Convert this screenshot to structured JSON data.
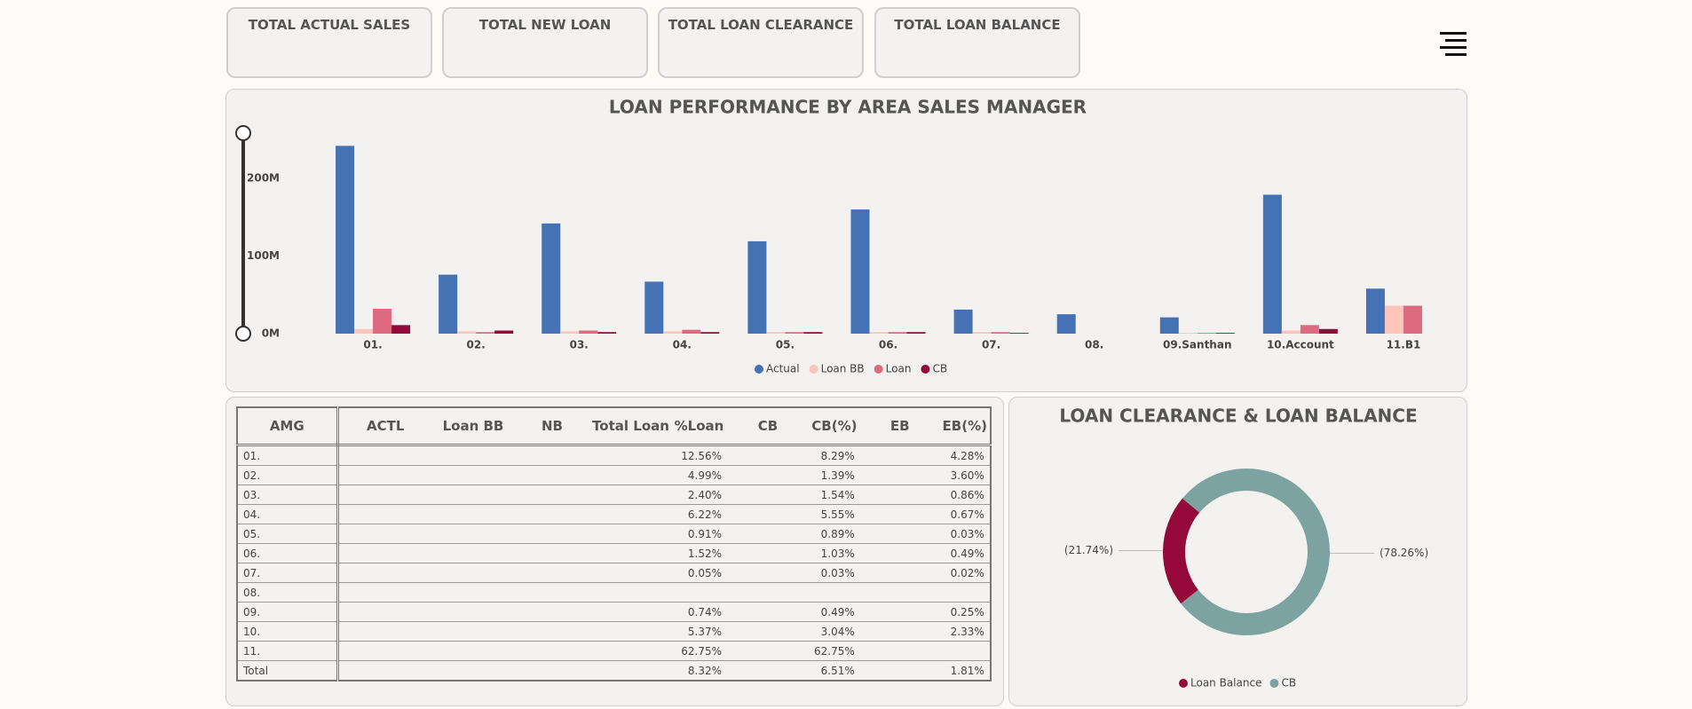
{
  "cards": [
    {
      "title": "TOTAL ACTUAL SALES"
    },
    {
      "title": "TOTAL NEW LOAN"
    },
    {
      "title": "TOTAL LOAN CLEARANCE"
    },
    {
      "title": "TOTAL LOAN BALANCE"
    }
  ],
  "chart_data": [
    {
      "type": "bar",
      "title": "LOAN PERFORMANCE BY AREA SALES MANAGER",
      "categories": [
        "01.",
        "02.",
        "03.",
        "04.",
        "05.",
        "06.",
        "07.",
        "08.",
        "09.Santhan",
        "10.Account",
        "11.B1"
      ],
      "series": [
        {
          "name": "Actual",
          "color": "#4472b4",
          "values": [
            242,
            76,
            142,
            67,
            119,
            160,
            31,
            25,
            21,
            179,
            58
          ]
        },
        {
          "name": "Loan BB",
          "color": "#fdc4bc",
          "values": [
            6,
            3,
            3,
            3,
            2,
            2,
            2,
            0,
            1,
            4,
            36
          ]
        },
        {
          "name": "Loan",
          "color": "#dd6a80",
          "values": [
            32,
            2,
            4,
            5,
            2,
            2,
            2,
            0,
            1,
            11,
            36
          ]
        },
        {
          "name": "CB",
          "color": "#95093a",
          "values": [
            11,
            4,
            2,
            2,
            2,
            2,
            1,
            0,
            1,
            6,
            0
          ]
        }
      ],
      "ylim": [
        0,
        255
      ],
      "yticks": [
        {
          "value": 0,
          "label": "0M"
        },
        {
          "value": 100,
          "label": "100M"
        },
        {
          "value": 200,
          "label": "200M"
        }
      ],
      "legend": "bottom"
    },
    {
      "type": "donut",
      "title": "LOAN CLEARANCE & LOAN BALANCE",
      "categories": [
        "Loan Balance",
        "CB"
      ],
      "values": [
        21.74,
        78.26
      ],
      "value_labels": [
        "(21.74%)",
        "(78.26%)"
      ],
      "colors": [
        "#95093a",
        "#7ca3a0"
      ],
      "legend": "bottom"
    }
  ],
  "table": {
    "columns": [
      "AMG",
      "ACTL",
      "Loan BB",
      "NB",
      "Total Loan",
      "%Loan",
      "CB",
      "CB(%)",
      "EB",
      "EB(%)"
    ],
    "rows": [
      [
        "01.",
        null,
        null,
        null,
        null,
        "12.56%",
        null,
        "8.29%",
        null,
        "4.28%"
      ],
      [
        "02.",
        null,
        null,
        null,
        null,
        "4.99%",
        null,
        "1.39%",
        null,
        "3.60%"
      ],
      [
        "03.",
        null,
        null,
        null,
        null,
        "2.40%",
        null,
        "1.54%",
        null,
        "0.86%"
      ],
      [
        "04.",
        null,
        null,
        null,
        null,
        "6.22%",
        null,
        "5.55%",
        null,
        "0.67%"
      ],
      [
        "05.",
        null,
        null,
        null,
        null,
        "0.91%",
        null,
        "0.89%",
        null,
        "0.03%"
      ],
      [
        "06.",
        null,
        null,
        null,
        null,
        "1.52%",
        null,
        "1.03%",
        null,
        "0.49%"
      ],
      [
        "07.",
        null,
        null,
        null,
        null,
        "0.05%",
        null,
        "0.03%",
        null,
        "0.02%"
      ],
      [
        "08.",
        null,
        null,
        null,
        null,
        null,
        null,
        null,
        null,
        null
      ],
      [
        "09.",
        null,
        null,
        null,
        null,
        "0.74%",
        null,
        "0.49%",
        null,
        "0.25%"
      ],
      [
        "10.",
        null,
        null,
        null,
        null,
        "5.37%",
        null,
        "3.04%",
        null,
        "2.33%"
      ],
      [
        "11.",
        null,
        null,
        null,
        null,
        "62.75%",
        null,
        "62.75%",
        null,
        null
      ],
      [
        "Total",
        null,
        null,
        null,
        null,
        "8.32%",
        null,
        "6.51%",
        null,
        "1.81%"
      ]
    ]
  }
}
